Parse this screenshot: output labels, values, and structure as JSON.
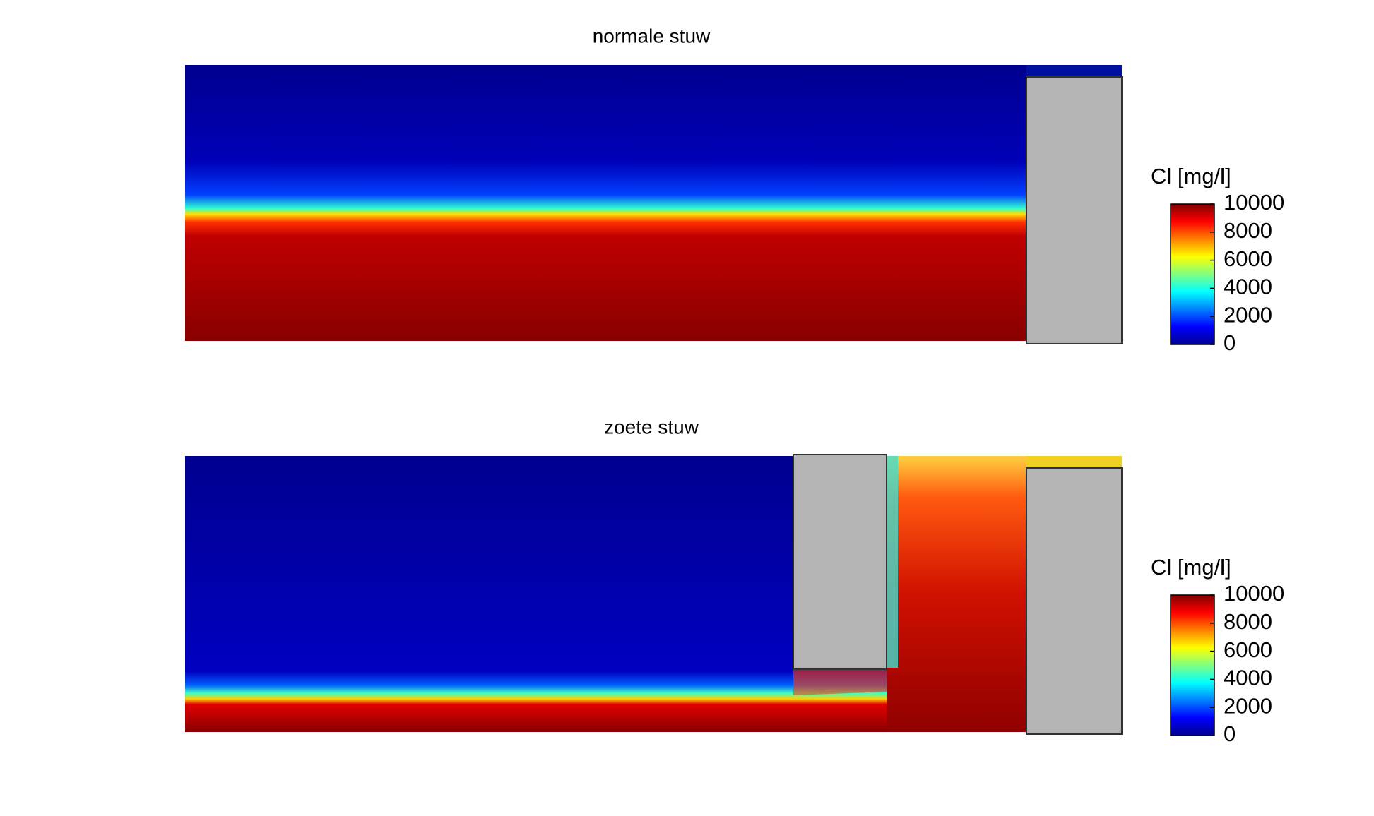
{
  "chart_data": [
    {
      "type": "heatmap",
      "title": "normale stuw",
      "colorbar_label": "Cl [mg/l]",
      "colormap": "jet",
      "clim": [
        0,
        10000
      ],
      "cticks": [
        0,
        2000,
        4000,
        6000,
        8000,
        10000
      ]
    },
    {
      "type": "heatmap",
      "title": "zoete stuw",
      "colorbar_label": "Cl [mg/l]",
      "colormap": "jet",
      "clim": [
        0,
        10000
      ],
      "cticks": [
        0,
        2000,
        4000,
        6000,
        8000,
        10000
      ]
    }
  ]
}
